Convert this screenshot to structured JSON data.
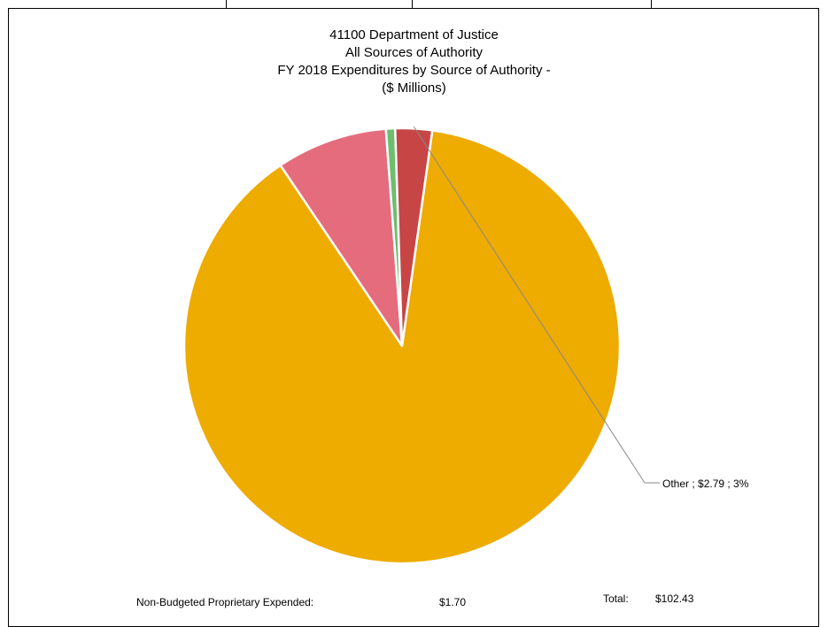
{
  "chart_data": {
    "type": "pie",
    "title_lines": [
      "41100 Department of Justice",
      "All Sources of Authority",
      "FY 2018 Expenditures by Source of Authority -",
      "($ Millions)"
    ],
    "slices": [
      {
        "name": "",
        "value": 90.5,
        "color": "#EEAB00"
      },
      {
        "name": "",
        "value": 8.44,
        "color": "#E56C7D"
      },
      {
        "name": "",
        "value": 0.7,
        "color": "#6DBE6D"
      },
      {
        "name": "Other",
        "value": 2.79,
        "color": "#C84545"
      }
    ],
    "annotations": [
      {
        "text": "Other  ;  $2.79 ; 3%",
        "slice": "Other"
      }
    ]
  },
  "footer": {
    "non_budgeted_label": "Non-Budgeted Proprietary Expended:",
    "non_budgeted_value": "$1.70",
    "total_label": "Total:",
    "total_value": "$102.43"
  }
}
